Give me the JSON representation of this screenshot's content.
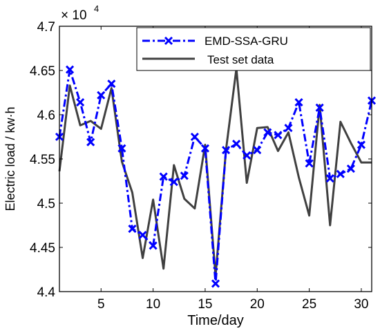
{
  "chart_data": {
    "type": "line",
    "title": "",
    "xlabel": "Time/day",
    "ylabel": "Electric load / kw·h",
    "exponent_label": "× 10",
    "exponent_power": "4",
    "xlim": [
      1,
      31
    ],
    "ylim": [
      4.4,
      4.7
    ],
    "xticks": [
      5,
      10,
      15,
      20,
      25,
      30
    ],
    "yticks": [
      4.4,
      4.45,
      4.5,
      4.55,
      4.6,
      4.65,
      4.7
    ],
    "ytick_labels": [
      "4.4",
      "4.45",
      "4.5",
      "4.55",
      "4.6",
      "4.65",
      "4.7"
    ],
    "grid": false,
    "legend_position": "top-right",
    "x": [
      1,
      2,
      3,
      4,
      5,
      6,
      7,
      8,
      9,
      10,
      11,
      12,
      13,
      14,
      15,
      16,
      17,
      18,
      19,
      20,
      21,
      22,
      23,
      24,
      25,
      26,
      27,
      28,
      29,
      30,
      31
    ],
    "series": [
      {
        "name": "EMD-SSA-GRU",
        "color": "#0000ff",
        "style": "dash-dot with x markers",
        "values": [
          4.575,
          4.651,
          4.614,
          4.569,
          4.622,
          4.635,
          4.562,
          4.471,
          4.464,
          4.452,
          4.53,
          4.524,
          4.531,
          4.575,
          4.562,
          4.409,
          4.56,
          4.567,
          4.554,
          4.56,
          4.58,
          4.577,
          4.585,
          4.614,
          4.545,
          4.608,
          4.528,
          4.533,
          4.539,
          4.566,
          4.616
        ]
      },
      {
        "name": "Test set data",
        "color": "#404040",
        "style": "solid",
        "values": [
          4.536,
          4.633,
          4.588,
          4.593,
          4.584,
          4.63,
          4.547,
          4.512,
          4.438,
          4.504,
          4.426,
          4.543,
          4.505,
          4.494,
          4.566,
          4.418,
          4.56,
          4.652,
          4.523,
          4.585,
          4.586,
          4.559,
          4.58,
          4.529,
          4.486,
          4.611,
          4.475,
          4.592,
          4.568,
          4.546,
          4.546
        ]
      }
    ]
  }
}
